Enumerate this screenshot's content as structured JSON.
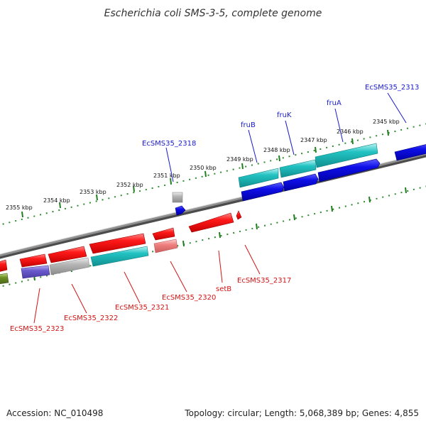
{
  "title": "Escherichia coli SMS-3-5, complete genome",
  "footer": {
    "accession": "Accession: NC_010498",
    "summary": "Topology: circular; Length: 5,068,389 bp; Genes: 4,855"
  },
  "colors": {
    "backbone": "#7f7f7f",
    "tick": "#1f7f1f",
    "red": "#ff1a1a",
    "cyan": "#22c2c2",
    "blue": "#0f0fe8",
    "gray": "#b4b4b4",
    "purple": "#6a5acd",
    "pink": "#f08080",
    "olive": "#6b8e23",
    "label_blue": "#1a1acd",
    "label_red": "#d21414"
  },
  "scale": {
    "unit": "kbp",
    "ticks": [
      {
        "kbp": 2345,
        "label": "2345 kbp"
      },
      {
        "kbp": 2346,
        "label": "2346 kbp"
      },
      {
        "kbp": 2347,
        "label": "2347 kbp"
      },
      {
        "kbp": 2348,
        "label": "2348 kbp"
      },
      {
        "kbp": 2349,
        "label": "2349 kbp"
      },
      {
        "kbp": 2350,
        "label": "2350 kbp"
      },
      {
        "kbp": 2351,
        "label": "2351 kbp"
      },
      {
        "kbp": 2352,
        "label": "2352 kbp"
      },
      {
        "kbp": 2353,
        "label": "2353 kbp"
      },
      {
        "kbp": 2354,
        "label": "2354 kbp"
      },
      {
        "kbp": 2355,
        "label": "2355 kbp"
      }
    ]
  },
  "labels_outer": [
    {
      "id": "ecsms35-2313",
      "text": "EcSMS35_2313"
    },
    {
      "id": "fruA",
      "text": "fruA"
    },
    {
      "id": "fruK",
      "text": "fruK"
    },
    {
      "id": "fruB",
      "text": "fruB"
    },
    {
      "id": "ecsms35-2318",
      "text": "EcSMS35_2318"
    }
  ],
  "labels_inner": [
    {
      "id": "ecsms35-2317",
      "text": "EcSMS35_2317"
    },
    {
      "id": "setB",
      "text": "setB"
    },
    {
      "id": "ecsms35-2320",
      "text": "EcSMS35_2320"
    },
    {
      "id": "ecsms35-2321",
      "text": "EcSMS35_2321"
    },
    {
      "id": "ecsms35-2322",
      "text": "EcSMS35_2322"
    },
    {
      "id": "ecsms35-2323",
      "text": "EcSMS35_2323"
    }
  ]
}
